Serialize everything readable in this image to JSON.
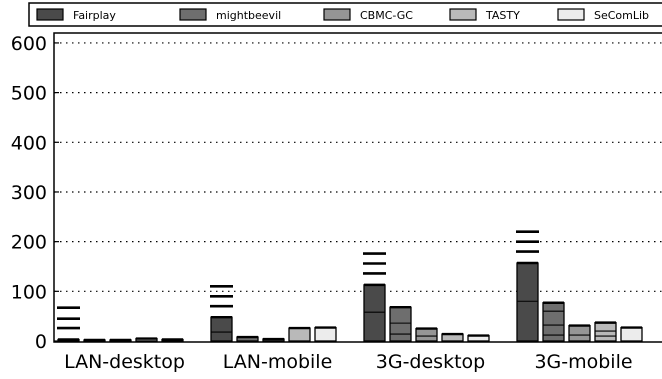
{
  "chart_data": {
    "type": "bar",
    "stacked_segments": true,
    "categories": [
      "LAN-desktop",
      "LAN-mobile",
      "3G-desktop",
      "3G-mobile"
    ],
    "ylim": [
      0,
      620
    ],
    "yticks": [
      0,
      100,
      200,
      300,
      400,
      500,
      600
    ],
    "grid": "horizontal dotted",
    "legend_position": "top",
    "series": [
      {
        "name": "Fairplay",
        "color": "#4a4a4a",
        "values": [
          3,
          48,
          113,
          157
        ],
        "segments": [
          [
            3
          ],
          [
            18,
            30
          ],
          [
            58,
            55
          ],
          [
            80,
            77
          ]
        ],
        "error_high": [
          [
            67,
            45,
            26
          ],
          [
            110,
            90,
            70
          ],
          [
            176,
            156,
            136
          ],
          [
            220,
            200,
            180
          ]
        ]
      },
      {
        "name": "mightbeevil",
        "color": "#6e6e6e",
        "values": [
          2,
          8,
          68,
          77
        ],
        "segments": [
          [
            2
          ],
          [
            8
          ],
          [
            14,
            22,
            32
          ],
          [
            12,
            20,
            28,
            17
          ]
        ]
      },
      {
        "name": "CBMC-GC",
        "color": "#959595",
        "values": [
          2,
          4,
          25,
          31
        ],
        "segments": [
          [
            2
          ],
          [
            4
          ],
          [
            10,
            15
          ],
          [
            12,
            19
          ]
        ]
      },
      {
        "name": "TASTY",
        "color": "#b9b9b9",
        "values": [
          5,
          26,
          14,
          37
        ],
        "segments": [
          [
            5
          ],
          [
            26
          ],
          [
            14
          ],
          [
            10,
            10,
            17
          ]
        ]
      },
      {
        "name": "SeComLib",
        "color": "#ececec",
        "values": [
          3,
          27,
          11,
          27
        ],
        "segments": [
          [
            3
          ],
          [
            27
          ],
          [
            11
          ],
          [
            27
          ]
        ]
      }
    ]
  }
}
